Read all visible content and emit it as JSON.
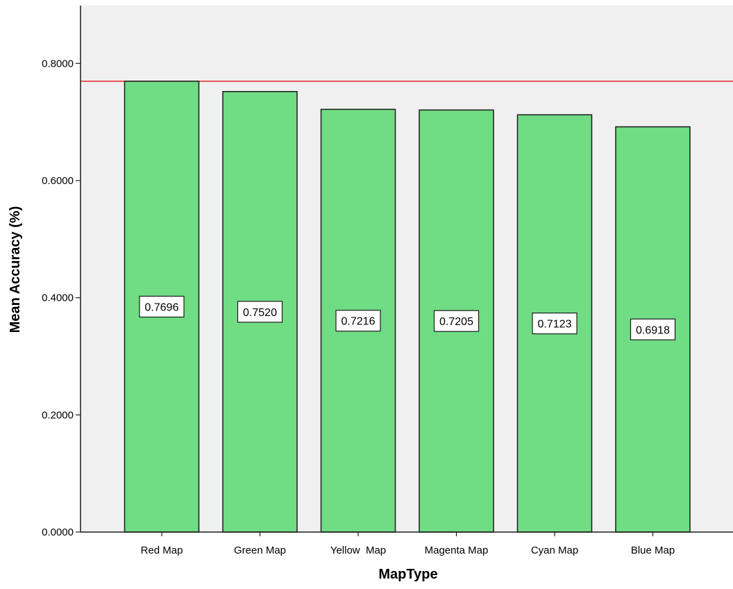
{
  "chart_data": {
    "type": "bar",
    "xlabel": "MapType",
    "ylabel": "Mean Accuracy (%)",
    "categories": [
      "Red Map",
      "Green Map",
      "Yellow  Map",
      "Magenta Map",
      "Cyan Map",
      "Blue Map"
    ],
    "values": [
      0.7696,
      0.752,
      0.7216,
      0.7205,
      0.7123,
      0.6918
    ],
    "data_labels": [
      "0.7696",
      "0.7520",
      "0.7216",
      "0.7205",
      "0.7123",
      "0.6918"
    ],
    "yticks": [
      0,
      0.2,
      0.4,
      0.6,
      0.8
    ],
    "ytick_labels": [
      "0.0000",
      "0.2000",
      "0.4000",
      "0.6000",
      "0.8000"
    ],
    "ylim": [
      0,
      0.8988
    ],
    "reference_line": 0.7696,
    "grid": false,
    "legend": "none",
    "colors": {
      "bar_fill": "#70dc84",
      "bar_stroke": "#1a1a1a",
      "plot_background": "#f0f0f0",
      "reference_line": "#e8262a"
    }
  }
}
